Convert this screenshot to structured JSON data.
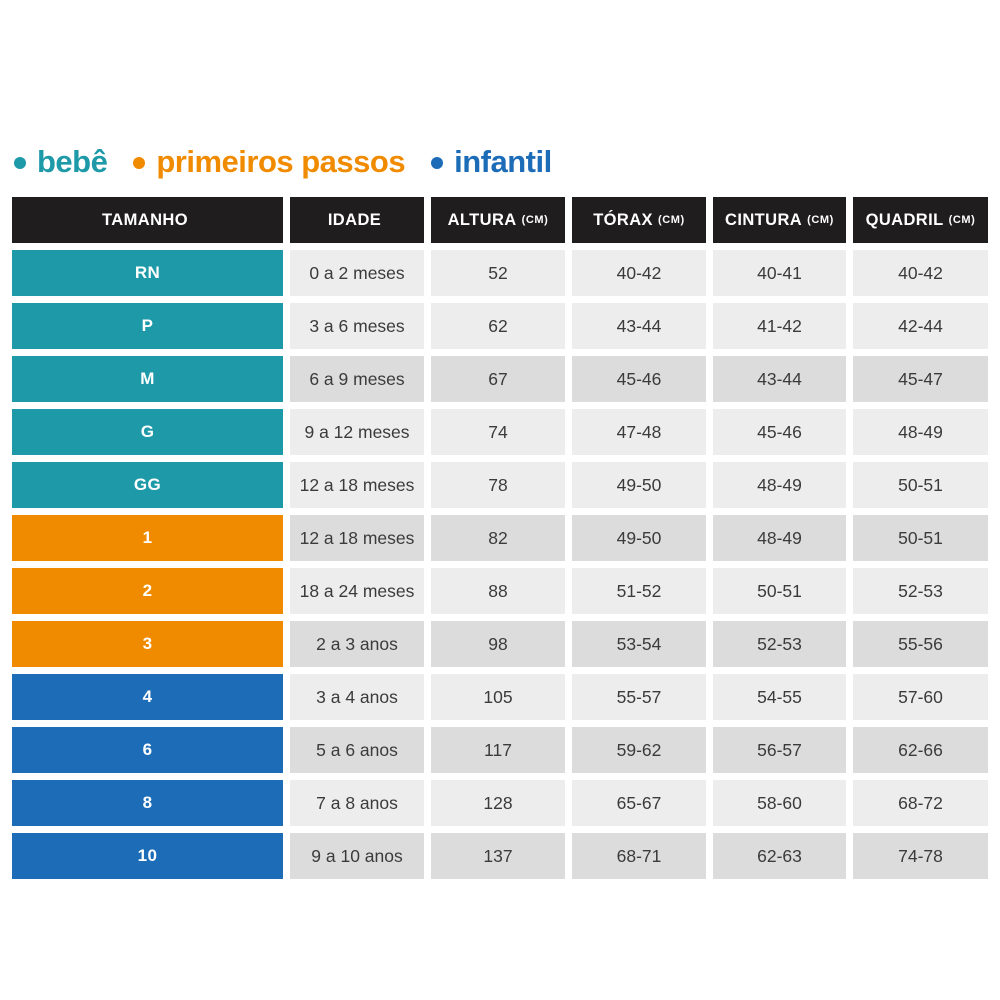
{
  "legend": {
    "items": [
      {
        "label": "bebê",
        "group": "bebe",
        "color": "#1d99a8"
      },
      {
        "label": "primeiros passos",
        "group": "primeiros_passos",
        "color": "#f08b00"
      },
      {
        "label": "infantil",
        "group": "infantil",
        "color": "#1d6cb8"
      }
    ]
  },
  "colors": {
    "bebe": "#1d99a8",
    "primeiros_passos": "#f08b00",
    "infantil": "#1d6cb8",
    "header_bg": "#1f1d1e",
    "header_text": "#ffffff",
    "row_light": "#ededed",
    "row_dark": "#dcdcdc",
    "cell_text": "#3b3b3b",
    "background": "#ffffff"
  },
  "table": {
    "headers": [
      {
        "label": "TAMANHO",
        "unit": ""
      },
      {
        "label": "IDADE",
        "unit": ""
      },
      {
        "label": "ALTURA",
        "unit": "(CM)"
      },
      {
        "label": "TÓRAX",
        "unit": "(CM)"
      },
      {
        "label": "CINTURA",
        "unit": "(CM)"
      },
      {
        "label": "QUADRIL",
        "unit": "(CM)"
      }
    ],
    "rows": [
      {
        "size": "RN",
        "group": "bebe",
        "shaded": false,
        "idade": "0 a 2 meses",
        "altura": "52",
        "torax": "40-42",
        "cintura": "40-41",
        "quadril": "40-42"
      },
      {
        "size": "P",
        "group": "bebe",
        "shaded": false,
        "idade": "3 a 6 meses",
        "altura": "62",
        "torax": "43-44",
        "cintura": "41-42",
        "quadril": "42-44"
      },
      {
        "size": "M",
        "group": "bebe",
        "shaded": true,
        "idade": "6 a 9 meses",
        "altura": "67",
        "torax": "45-46",
        "cintura": "43-44",
        "quadril": "45-47"
      },
      {
        "size": "G",
        "group": "bebe",
        "shaded": false,
        "idade": "9 a 12 meses",
        "altura": "74",
        "torax": "47-48",
        "cintura": "45-46",
        "quadril": "48-49"
      },
      {
        "size": "GG",
        "group": "bebe",
        "shaded": false,
        "idade": "12 a 18 meses",
        "altura": "78",
        "torax": "49-50",
        "cintura": "48-49",
        "quadril": "50-51"
      },
      {
        "size": "1",
        "group": "primeiros_passos",
        "shaded": true,
        "idade": "12 a 18 meses",
        "altura": "82",
        "torax": "49-50",
        "cintura": "48-49",
        "quadril": "50-51"
      },
      {
        "size": "2",
        "group": "primeiros_passos",
        "shaded": false,
        "idade": "18 a 24 meses",
        "altura": "88",
        "torax": "51-52",
        "cintura": "50-51",
        "quadril": "52-53"
      },
      {
        "size": "3",
        "group": "primeiros_passos",
        "shaded": true,
        "idade": "2 a 3 anos",
        "altura": "98",
        "torax": "53-54",
        "cintura": "52-53",
        "quadril": "55-56"
      },
      {
        "size": "4",
        "group": "infantil",
        "shaded": false,
        "idade": "3 a 4 anos",
        "altura": "105",
        "torax": "55-57",
        "cintura": "54-55",
        "quadril": "57-60"
      },
      {
        "size": "6",
        "group": "infantil",
        "shaded": true,
        "idade": "5 a 6 anos",
        "altura": "117",
        "torax": "59-62",
        "cintura": "56-57",
        "quadril": "62-66"
      },
      {
        "size": "8",
        "group": "infantil",
        "shaded": false,
        "idade": "7 a 8 anos",
        "altura": "128",
        "torax": "65-67",
        "cintura": "58-60",
        "quadril": "68-72"
      },
      {
        "size": "10",
        "group": "infantil",
        "shaded": true,
        "idade": "9 a 10 anos",
        "altura": "137",
        "torax": "68-71",
        "cintura": "62-63",
        "quadril": "74-78"
      }
    ]
  },
  "chart_data": {
    "type": "table",
    "title": "",
    "columns": [
      "TAMANHO",
      "IDADE",
      "ALTURA (CM)",
      "TÓRAX (CM)",
      "CINTURA (CM)",
      "QUADRIL (CM)"
    ],
    "rows": [
      [
        "RN",
        "0 a 2 meses",
        "52",
        "40-42",
        "40-41",
        "40-42"
      ],
      [
        "P",
        "3 a 6 meses",
        "62",
        "43-44",
        "41-42",
        "42-44"
      ],
      [
        "M",
        "6 a 9 meses",
        "67",
        "45-46",
        "43-44",
        "45-47"
      ],
      [
        "G",
        "9 a 12 meses",
        "74",
        "47-48",
        "45-46",
        "48-49"
      ],
      [
        "GG",
        "12 a 18 meses",
        "78",
        "49-50",
        "48-49",
        "50-51"
      ],
      [
        "1",
        "12 a 18 meses",
        "82",
        "49-50",
        "48-49",
        "50-51"
      ],
      [
        "2",
        "18 a 24 meses",
        "88",
        "51-52",
        "50-51",
        "52-53"
      ],
      [
        "3",
        "2 a 3 anos",
        "98",
        "53-54",
        "52-53",
        "55-56"
      ],
      [
        "4",
        "3 a 4 anos",
        "105",
        "55-57",
        "54-55",
        "57-60"
      ],
      [
        "6",
        "5 a 6 anos",
        "117",
        "59-62",
        "56-57",
        "62-66"
      ],
      [
        "8",
        "7 a 8 anos",
        "128",
        "65-67",
        "58-60",
        "68-72"
      ],
      [
        "10",
        "9 a 10 anos",
        "137",
        "68-71",
        "62-63",
        "74-78"
      ]
    ],
    "groups": {
      "bebê": [
        "RN",
        "P",
        "M",
        "G",
        "GG"
      ],
      "primeiros passos": [
        "1",
        "2",
        "3"
      ],
      "infantil": [
        "4",
        "6",
        "8",
        "10"
      ]
    },
    "legend_position": "top-left"
  }
}
